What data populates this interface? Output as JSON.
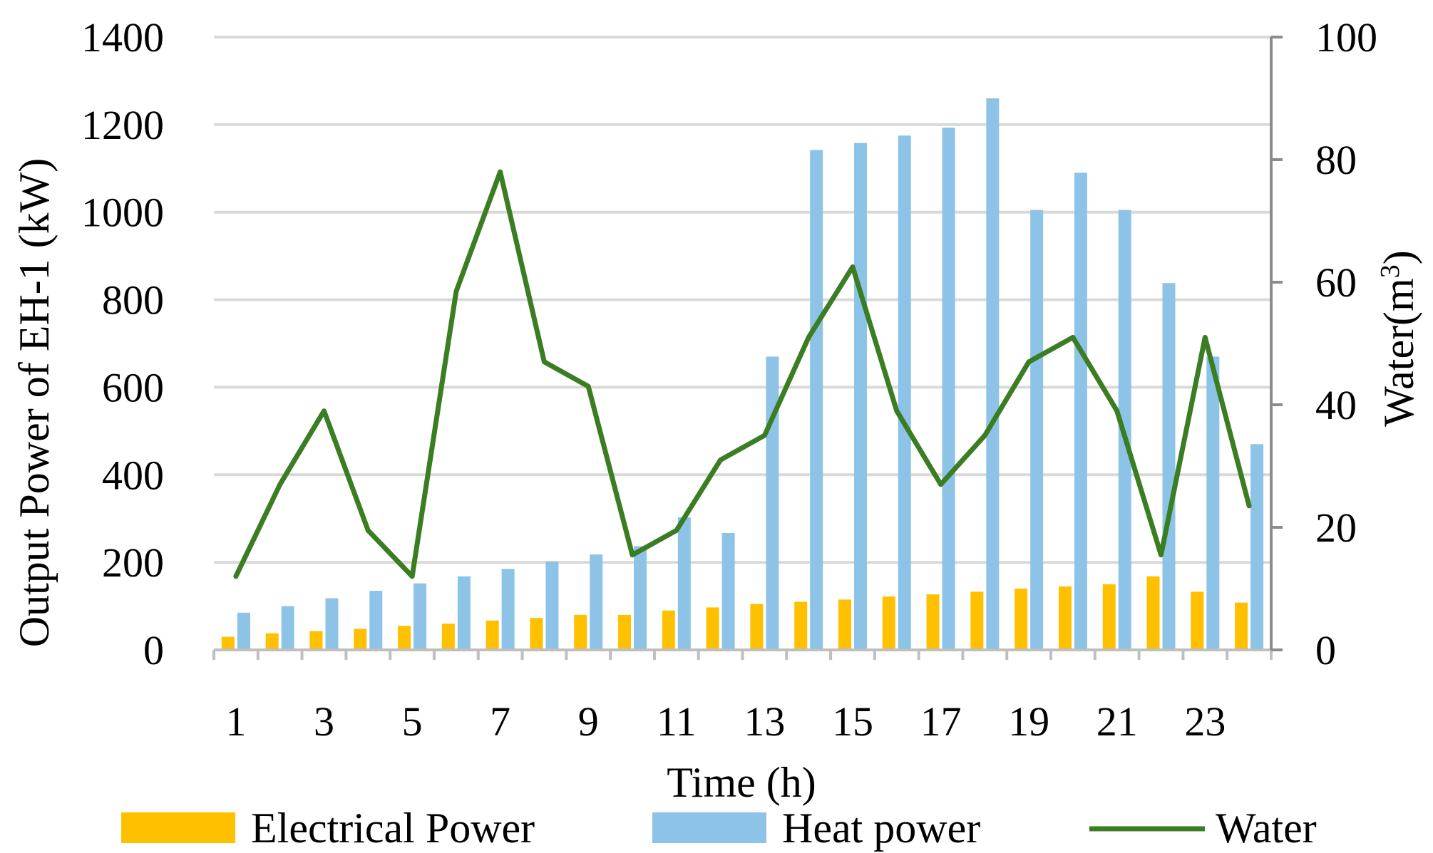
{
  "chart_data": {
    "type": "bar+line",
    "x_label": "Time (h)",
    "y_label_left": "Output Power of EH-1 (kW)",
    "y_label_right_base": "Water(m",
    "y_label_right_sup": "3",
    "y_label_right_end": ")",
    "hours": [
      1,
      2,
      3,
      4,
      5,
      6,
      7,
      8,
      9,
      10,
      11,
      12,
      13,
      14,
      15,
      16,
      17,
      18,
      19,
      20,
      21,
      22,
      23,
      24
    ],
    "x_tick_labels": [
      "1",
      "3",
      "5",
      "7",
      "9",
      "11",
      "13",
      "15",
      "17",
      "19",
      "21",
      "23"
    ],
    "left_axis": {
      "min": 0,
      "max": 1400,
      "ticks": [
        0,
        200,
        400,
        600,
        800,
        1000,
        1200,
        1400
      ]
    },
    "right_axis": {
      "min": 0,
      "max": 100,
      "ticks": [
        0,
        20,
        40,
        60,
        80,
        100
      ]
    },
    "series": [
      {
        "name": "Electrical Power",
        "kind": "bar",
        "axis": "left",
        "color": "#FFC000",
        "values": [
          30,
          38,
          43,
          48,
          55,
          60,
          67,
          73,
          80,
          80,
          90,
          97,
          105,
          110,
          115,
          122,
          127,
          133,
          140,
          145,
          150,
          168,
          133,
          108
        ]
      },
      {
        "name": "Heat power",
        "kind": "bar",
        "axis": "left",
        "color": "#8DC3E6",
        "values": [
          85,
          100,
          118,
          135,
          152,
          168,
          185,
          202,
          218,
          237,
          303,
          267,
          670,
          1142,
          1158,
          1175,
          1193,
          1260,
          1005,
          1090,
          1005,
          838,
          670,
          470
        ]
      },
      {
        "name": "Water",
        "kind": "line",
        "axis": "right",
        "color": "#3A7D22",
        "values": [
          12,
          27,
          39,
          19.5,
          12,
          58.5,
          78,
          47,
          43,
          15.5,
          19.5,
          31,
          35,
          51,
          62.5,
          39,
          27,
          35,
          47,
          51,
          39,
          15.5,
          51,
          23.5
        ]
      }
    ],
    "grid": "horizontal",
    "legend_position": "bottom"
  }
}
